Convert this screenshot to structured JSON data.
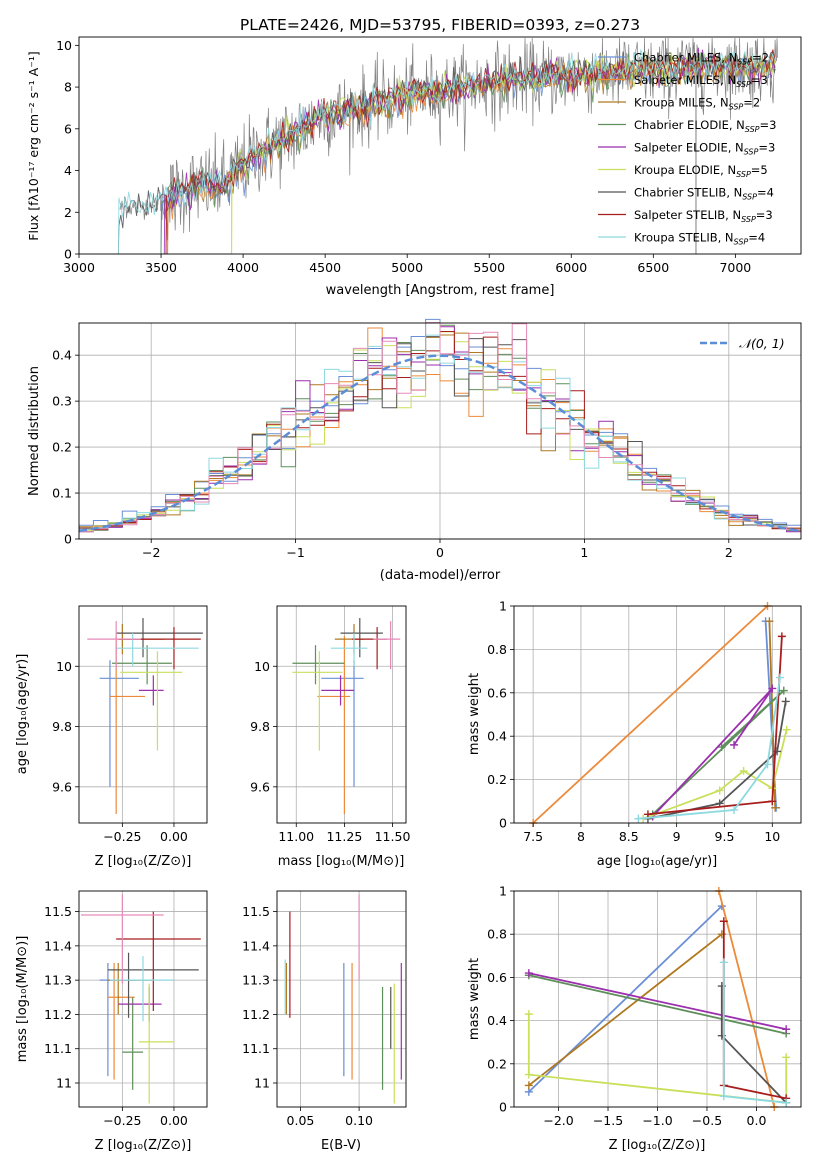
{
  "colors": [
    "#6a8fd6",
    "#ec8a3a",
    "#b07820",
    "#5f8f5a",
    "#9b2fae",
    "#c8e05a",
    "#555555",
    "#a81d1d",
    "#8dd9e0",
    "#e68ab8"
  ],
  "chart_data": [
    {
      "type": "line",
      "title": "PLATE=2426, MJD=53795, FIBERID=0393, z=0.273",
      "xlabel": "wavelength [Angstrom, rest frame]",
      "ylabel": "Flux [fλ10⁻¹⁷ erg cm⁻² s⁻¹ A⁻¹]",
      "xlim": [
        3000,
        7400
      ],
      "ylim": [
        0,
        10.4
      ],
      "xticks": [
        3000,
        3500,
        4000,
        4500,
        5000,
        5500,
        6000,
        6500,
        7000
      ],
      "yticks": [
        0,
        2,
        4,
        6,
        8,
        10
      ],
      "grid": false,
      "legend_position": "right",
      "legend": [
        "Chabrier MILES, N_SSP=2",
        "Salpeter MILES, N_SSP=3",
        "Kroupa MILES, N_SSP=2",
        "Chabrier ELODIE, N_SSP=3",
        "Salpeter ELODIE, N_SSP=3",
        "Kroupa ELODIE, N_SSP=5",
        "Chabrier STELIB, N_SSP=4",
        "Salpeter STELIB, N_SSP=3",
        "Kroupa STELIB, N_SSP=4"
      ],
      "data_anchors": {
        "wavelength": [
          3250,
          3400,
          3500,
          3600,
          3700,
          3800,
          3900,
          4000,
          4100,
          4200,
          4300,
          4400,
          4500,
          4700,
          4900,
          5100,
          5300,
          5500,
          5700,
          5900,
          6100,
          6300,
          6500,
          6700,
          6900,
          7100,
          7250
        ],
        "flux": [
          2.2,
          2.3,
          2.5,
          2.9,
          3.2,
          3.3,
          3.4,
          4.3,
          4.9,
          5.3,
          5.7,
          6.2,
          6.6,
          7.0,
          7.4,
          7.7,
          7.9,
          8.2,
          8.4,
          8.5,
          8.6,
          8.7,
          8.8,
          8.9,
          9.0,
          9.0,
          9.1
        ]
      }
    },
    {
      "type": "line",
      "xlabel": "(data-model)/error",
      "ylabel": "Normed distribution",
      "xlim": [
        -2.5,
        2.5
      ],
      "ylim": [
        0,
        0.47
      ],
      "xticks": [
        -2,
        -1,
        0,
        1,
        2
      ],
      "xtick_labels": [
        "−2",
        "−1",
        "0",
        "1",
        "2"
      ],
      "yticks": [
        0.0,
        0.1,
        0.2,
        0.3,
        0.4
      ],
      "grid": true,
      "legend_position": "top-right",
      "legend": [
        "𝒩(0, 1)"
      ],
      "histogram_bins": 50,
      "histogram_curve": "normal pdf, mean 0, sd 1"
    },
    {
      "type": "scatter",
      "xlabel": "Z [log₁₀(Z/Z⊙)]",
      "ylabel": "age  [log₁₀(age/yr)]",
      "xlim": [
        -0.46,
        0.16
      ],
      "ylim": [
        9.48,
        10.2
      ],
      "xticks": [
        -0.25,
        0.0
      ],
      "xtick_labels": [
        "−0.25",
        "0.00"
      ],
      "yticks": [
        9.6,
        9.8,
        10.0
      ],
      "grid": true,
      "points": [
        {
          "x": -0.31,
          "y": 9.96,
          "xerr": [
            0.05,
            0.14
          ],
          "yerr": [
            0.36,
            0.06
          ]
        },
        {
          "x": -0.28,
          "y": 9.9,
          "xerr": [
            0.03,
            0.14
          ],
          "yerr": [
            0.39,
            0.2
          ]
        },
        {
          "x": -0.25,
          "y": 10.09,
          "xerr": [
            0.02,
            0.2
          ],
          "yerr": [
            0.05,
            0.05
          ]
        },
        {
          "x": -0.13,
          "y": 10.01,
          "xerr": [
            0.17,
            0.12
          ],
          "yerr": [
            0.07,
            0.06
          ]
        },
        {
          "x": -0.1,
          "y": 9.92,
          "xerr": [
            0.07,
            0.05
          ],
          "yerr": [
            0.05,
            0.05
          ]
        },
        {
          "x": -0.08,
          "y": 9.98,
          "xerr": [
            0.18,
            0.12
          ],
          "yerr": [
            0.26,
            0.07
          ]
        },
        {
          "x": -0.15,
          "y": 10.11,
          "xerr": [
            0.13,
            0.29
          ],
          "yerr": [
            0.08,
            0.05
          ]
        },
        {
          "x": 0.0,
          "y": 10.09,
          "xerr": [
            0.27,
            0.13
          ],
          "yerr": [
            0.1,
            0.04
          ]
        },
        {
          "x": -0.2,
          "y": 10.06,
          "xerr": [
            0.08,
            0.32
          ],
          "yerr": [
            0.06,
            0.05
          ]
        },
        {
          "x": -0.28,
          "y": 10.09,
          "xerr": [
            0.14,
            0.12
          ],
          "yerr": [
            0.1,
            0.06
          ]
        }
      ]
    },
    {
      "type": "scatter",
      "xlabel": "mass [log₁₀(M/M⊙)]",
      "xlim": [
        10.9,
        11.57
      ],
      "ylim": [
        9.48,
        10.2
      ],
      "xticks": [
        11.0,
        11.25,
        11.5
      ],
      "xtick_labels": [
        "11.00",
        "11.25",
        "11.50"
      ],
      "yticks": [
        9.6,
        9.8,
        10.0
      ],
      "grid": true,
      "points": [
        {
          "x": 11.3,
          "y": 9.96,
          "xerr": [
            0.17,
            0.05
          ],
          "yerr": [
            0.36,
            0.06
          ]
        },
        {
          "x": 11.25,
          "y": 9.9,
          "xerr": [
            0.14,
            0.03
          ],
          "yerr": [
            0.39,
            0.2
          ]
        },
        {
          "x": 11.3,
          "y": 10.09,
          "xerr": [
            0.1,
            0.05
          ],
          "yerr": [
            0.05,
            0.05
          ]
        },
        {
          "x": 11.1,
          "y": 10.01,
          "xerr": [
            0.12,
            0.15
          ],
          "yerr": [
            0.07,
            0.06
          ]
        },
        {
          "x": 11.23,
          "y": 9.92,
          "xerr": [
            0.1,
            0.07
          ],
          "yerr": [
            0.05,
            0.05
          ]
        },
        {
          "x": 11.12,
          "y": 9.98,
          "xerr": [
            0.14,
            0.12
          ],
          "yerr": [
            0.26,
            0.07
          ]
        },
        {
          "x": 11.33,
          "y": 10.11,
          "xerr": [
            0.1,
            0.12
          ],
          "yerr": [
            0.08,
            0.05
          ]
        },
        {
          "x": 11.42,
          "y": 10.09,
          "xerr": [
            0.13,
            0.05
          ],
          "yerr": [
            0.1,
            0.04
          ]
        },
        {
          "x": 11.3,
          "y": 10.06,
          "xerr": [
            0.12,
            0.07
          ],
          "yerr": [
            0.06,
            0.05
          ]
        },
        {
          "x": 11.49,
          "y": 10.09,
          "xerr": [
            0.09,
            0.05
          ],
          "yerr": [
            0.1,
            0.06
          ]
        }
      ]
    },
    {
      "type": "line",
      "ylabel": "mass weight",
      "xlabel": "age  [log₁₀(age/yr)]",
      "xlim": [
        7.3,
        10.3
      ],
      "ylim": [
        0,
        1
      ],
      "xticks": [
        7.5,
        8.0,
        8.5,
        9.0,
        9.5,
        10.0
      ],
      "yticks": [
        0.0,
        0.2,
        0.4,
        0.6,
        0.8,
        1.0
      ],
      "grid": true,
      "series": [
        {
          "x": [
            9.93,
            10.04
          ],
          "y": [
            0.93,
            0.07
          ]
        },
        {
          "x": [
            7.5,
            9.95
          ],
          "y": [
            0.0,
            1.0
          ]
        },
        {
          "x": [
            9.97,
            10.03
          ],
          "y": [
            0.93,
            0.07
          ]
        },
        {
          "x": [
            9.47,
            10.12,
            8.75
          ],
          "y": [
            0.35,
            0.61,
            0.04
          ]
        },
        {
          "x": [
            9.6,
            10.0,
            8.75
          ],
          "y": [
            0.36,
            0.62,
            0.03
          ]
        },
        {
          "x": [
            8.65,
            9.45,
            9.7,
            10.0,
            10.15
          ],
          "y": [
            0.02,
            0.15,
            0.24,
            0.16,
            0.43
          ]
        },
        {
          "x": [
            10.14,
            10.05,
            9.45,
            8.7
          ],
          "y": [
            0.56,
            0.33,
            0.09,
            0.02
          ]
        },
        {
          "x": [
            10.1,
            10.0,
            8.7
          ],
          "y": [
            0.86,
            0.1,
            0.04
          ]
        },
        {
          "x": [
            10.08,
            9.95,
            9.6,
            8.6
          ],
          "y": [
            0.67,
            0.27,
            0.06,
            0.02
          ]
        }
      ]
    },
    {
      "type": "scatter",
      "xlabel": "Z [log₁₀(Z/Z⊙)]",
      "ylabel": "mass [log₁₀(M/M⊙)]",
      "xlim": [
        -0.46,
        0.16
      ],
      "ylim": [
        10.93,
        11.56
      ],
      "xticks": [
        -0.25,
        0.0
      ],
      "xtick_labels": [
        "−0.25",
        "0.00"
      ],
      "yticks": [
        11.0,
        11.1,
        11.2,
        11.3,
        11.4,
        11.5
      ],
      "grid": true,
      "points": [
        {
          "x": -0.32,
          "y": 11.3,
          "xerr": [
            0.04,
            0.14
          ],
          "yerr": [
            0.28,
            0.05
          ]
        },
        {
          "x": -0.29,
          "y": 11.25,
          "xerr": [
            0.03,
            0.1
          ],
          "yerr": [
            0.24,
            0.1
          ]
        },
        {
          "x": -0.27,
          "y": 11.3,
          "xerr": [
            0.05,
            0.17
          ],
          "yerr": [
            0.1,
            0.05
          ]
        },
        {
          "x": -0.2,
          "y": 11.09,
          "xerr": [
            0.05,
            0.05
          ],
          "yerr": [
            0.11,
            0.16
          ]
        },
        {
          "x": -0.12,
          "y": 11.23,
          "xerr": [
            0.15,
            0.06
          ],
          "yerr": [
            0.05,
            0.05
          ]
        },
        {
          "x": -0.12,
          "y": 11.12,
          "xerr": [
            0.05,
            0.12
          ],
          "yerr": [
            0.18,
            0.17
          ]
        },
        {
          "x": -0.22,
          "y": 11.33,
          "xerr": [
            0.1,
            0.34
          ],
          "yerr": [
            0.14,
            0.05
          ]
        },
        {
          "x": -0.1,
          "y": 11.42,
          "xerr": [
            0.18,
            0.23
          ],
          "yerr": [
            0.21,
            0.08
          ]
        },
        {
          "x": -0.15,
          "y": 11.3,
          "xerr": [
            0.16,
            0.15
          ],
          "yerr": [
            0.12,
            0.07
          ]
        },
        {
          "x": -0.25,
          "y": 11.49,
          "xerr": [
            0.2,
            0.2
          ],
          "yerr": [
            0.2,
            0.06
          ]
        }
      ]
    },
    {
      "type": "scatter",
      "xlabel": "E(B-V)",
      "xlim": [
        0.03,
        0.14
      ],
      "ylim": [
        10.93,
        11.56
      ],
      "xticks": [
        0.05,
        0.1
      ],
      "xtick_labels": [
        "0.05",
        "0.10"
      ],
      "yticks": [
        11.0,
        11.1,
        11.2,
        11.3,
        11.4,
        11.5
      ],
      "grid": true,
      "points": [
        {
          "x": 0.087,
          "y": 11.3,
          "yerr": [
            0.28,
            0.05
          ]
        },
        {
          "x": 0.094,
          "y": 11.25,
          "yerr": [
            0.24,
            0.1
          ]
        },
        {
          "x": 0.038,
          "y": 11.3,
          "yerr": [
            0.1,
            0.05
          ]
        },
        {
          "x": 0.12,
          "y": 11.09,
          "yerr": [
            0.11,
            0.19
          ]
        },
        {
          "x": 0.136,
          "y": 11.23,
          "yerr": [
            0.22,
            0.12
          ]
        },
        {
          "x": 0.13,
          "y": 11.12,
          "yerr": [
            0.18,
            0.17
          ]
        },
        {
          "x": 0.127,
          "y": 11.2,
          "yerr": [
            0.1,
            0.08
          ]
        },
        {
          "x": 0.041,
          "y": 11.35,
          "yerr": [
            0.16,
            0.15
          ]
        },
        {
          "x": 0.037,
          "y": 11.26,
          "yerr": [
            0.06,
            0.1
          ]
        },
        {
          "x": 0.1,
          "y": 11.4,
          "yerr": [
            0.1,
            0.15
          ]
        }
      ]
    },
    {
      "type": "line",
      "ylabel": "mass weight",
      "xlabel": "Z [log₁₀(Z/Z⊙)]",
      "xlim": [
        -2.45,
        0.45
      ],
      "ylim": [
        0,
        1
      ],
      "xticks": [
        -2.0,
        -1.5,
        -1.0,
        -0.5,
        0.0
      ],
      "xtick_labels": [
        "−2.0",
        "−1.5",
        "−1.0",
        "−0.5",
        "0.0"
      ],
      "yticks": [
        0.0,
        0.2,
        0.4,
        0.6,
        0.8,
        1.0
      ],
      "grid": true,
      "series": [
        {
          "x": [
            -2.3,
            -0.35
          ],
          "y": [
            0.07,
            0.93
          ]
        },
        {
          "x": [
            -0.38,
            0.18
          ],
          "y": [
            1.0,
            0.0
          ]
        },
        {
          "x": [
            -2.3,
            -0.35
          ],
          "y": [
            0.1,
            0.8
          ]
        },
        {
          "x": [
            -2.3,
            0.3
          ],
          "y": [
            0.61,
            0.34
          ]
        },
        {
          "x": [
            -2.3,
            0.3
          ],
          "y": [
            0.62,
            0.36
          ]
        },
        {
          "x": [
            -2.3,
            -2.3,
            0.3,
            0.3
          ],
          "y": [
            0.43,
            0.15,
            0.02,
            0.23
          ]
        },
        {
          "x": [
            -0.35,
            -0.35,
            0.3
          ],
          "y": [
            0.56,
            0.33,
            0.02
          ]
        },
        {
          "x": [
            -0.33,
            -0.33,
            0.3
          ],
          "y": [
            0.86,
            0.1,
            0.04
          ]
        },
        {
          "x": [
            -0.33,
            -0.33,
            0.3
          ],
          "y": [
            0.67,
            0.05,
            0.02
          ]
        }
      ]
    }
  ]
}
